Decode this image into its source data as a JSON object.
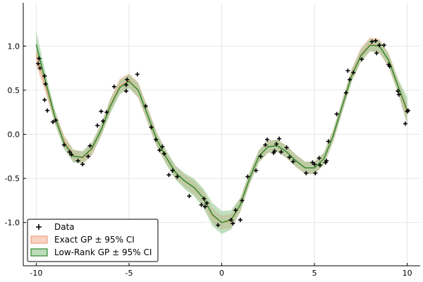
{
  "chart_data": {
    "type": "line",
    "title": "",
    "xlabel": "",
    "ylabel": "",
    "xlim": [
      -10.7,
      10.7
    ],
    "ylim": [
      -1.49,
      1.49
    ],
    "x_ticks": [
      -10,
      -5,
      0,
      5,
      10
    ],
    "x_tick_labels": [
      "-10",
      "-5",
      "0",
      "5",
      "10"
    ],
    "y_ticks": [
      -1.0,
      -0.5,
      0.0,
      0.5,
      1.0
    ],
    "y_tick_labels": [
      "-1.0",
      "-0.5",
      "0.0",
      "0.5",
      "1.0"
    ],
    "grid": true,
    "legend_position": "bottom-left",
    "series": [
      {
        "name": "Data",
        "kind": "scatter",
        "marker": "plus",
        "color": "#000000",
        "points": [
          [
            -9.9,
            0.8
          ],
          [
            -9.85,
            0.86
          ],
          [
            -9.8,
            0.75
          ],
          [
            -9.55,
            0.66
          ],
          [
            -9.5,
            0.57
          ],
          [
            -9.55,
            0.39
          ],
          [
            -9.4,
            0.27
          ],
          [
            -9.1,
            0.14
          ],
          [
            -8.95,
            0.16
          ],
          [
            -8.5,
            -0.12
          ],
          [
            -8.2,
            -0.2
          ],
          [
            -8.1,
            -0.23
          ],
          [
            -7.75,
            -0.3
          ],
          [
            -7.5,
            -0.34
          ],
          [
            -7.2,
            -0.25
          ],
          [
            -7.1,
            -0.13
          ],
          [
            -6.7,
            0.1
          ],
          [
            -6.5,
            0.26
          ],
          [
            -6.4,
            0.15
          ],
          [
            -6.2,
            0.25
          ],
          [
            -5.8,
            0.54
          ],
          [
            -5.15,
            0.56
          ],
          [
            -5.1,
            0.62
          ],
          [
            -5.15,
            0.49
          ],
          [
            -4.55,
            0.68
          ],
          [
            -4.1,
            0.32
          ],
          [
            -3.8,
            0.08
          ],
          [
            -3.55,
            -0.06
          ],
          [
            -3.35,
            -0.18
          ],
          [
            -3.2,
            -0.14
          ],
          [
            -3.1,
            -0.22
          ],
          [
            -2.85,
            -0.46
          ],
          [
            -2.65,
            -0.41
          ],
          [
            -2.4,
            -0.48
          ],
          [
            -1.75,
            -0.7
          ],
          [
            -1.1,
            -0.8
          ],
          [
            -0.95,
            -0.73
          ],
          [
            -0.9,
            -0.82
          ],
          [
            -0.8,
            -0.78
          ],
          [
            -0.2,
            -1.03
          ],
          [
            0.5,
            -0.97
          ],
          [
            0.6,
            -1.01
          ],
          [
            0.75,
            -0.86
          ],
          [
            1.0,
            -0.97
          ],
          [
            1.1,
            -0.75
          ],
          [
            1.4,
            -0.48
          ],
          [
            1.85,
            -0.41
          ],
          [
            2.1,
            -0.25
          ],
          [
            2.35,
            -0.12
          ],
          [
            2.45,
            -0.06
          ],
          [
            2.8,
            -0.21
          ],
          [
            2.85,
            -0.19
          ],
          [
            2.95,
            -0.11
          ],
          [
            3.1,
            -0.05
          ],
          [
            3.2,
            -0.2
          ],
          [
            3.5,
            -0.15
          ],
          [
            3.65,
            -0.26
          ],
          [
            3.85,
            -0.31
          ],
          [
            4.55,
            -0.44
          ],
          [
            4.9,
            -0.32
          ],
          [
            5.0,
            -0.34
          ],
          [
            5.05,
            -0.44
          ],
          [
            5.25,
            -0.27
          ],
          [
            5.3,
            -0.35
          ],
          [
            5.6,
            -0.32
          ],
          [
            5.65,
            -0.3
          ],
          [
            5.75,
            -0.08
          ],
          [
            6.2,
            0.23
          ],
          [
            6.7,
            0.47
          ],
          [
            6.8,
            0.72
          ],
          [
            6.9,
            0.62
          ],
          [
            7.1,
            0.7
          ],
          [
            7.55,
            0.85
          ],
          [
            8.1,
            1.05
          ],
          [
            8.3,
            1.06
          ],
          [
            8.35,
            0.92
          ],
          [
            8.5,
            1.01
          ],
          [
            8.75,
            1.01
          ],
          [
            9.0,
            0.79
          ],
          [
            9.05,
            0.77
          ],
          [
            9.5,
            0.49
          ],
          [
            9.55,
            0.45
          ],
          [
            9.9,
            0.12
          ],
          [
            10.0,
            0.26
          ],
          [
            10.05,
            0.27
          ]
        ]
      },
      {
        "name": "Exact GP ± 95% CI",
        "kind": "line_band",
        "color": "#f0a27d",
        "fill": "#f5b59a",
        "x": [
          -10,
          -9.5,
          -9,
          -8.5,
          -8,
          -7.5,
          -7,
          -6.5,
          -6,
          -5.5,
          -5,
          -4.5,
          -4,
          -3.5,
          -3,
          -2.5,
          -2,
          -1.5,
          -1,
          -0.5,
          0,
          0.5,
          1,
          1.5,
          2,
          2.5,
          3,
          3.5,
          4,
          4.5,
          5,
          5.5,
          6,
          6.5,
          7,
          7.5,
          8,
          8.5,
          9,
          9.5,
          10
        ],
        "mean": [
          0.9,
          0.55,
          0.2,
          -0.08,
          -0.24,
          -0.27,
          -0.17,
          0.05,
          0.33,
          0.55,
          0.61,
          0.5,
          0.22,
          -0.06,
          -0.26,
          -0.43,
          -0.53,
          -0.6,
          -0.72,
          -0.92,
          -1.0,
          -0.98,
          -0.8,
          -0.5,
          -0.25,
          -0.14,
          -0.13,
          -0.2,
          -0.3,
          -0.38,
          -0.38,
          -0.28,
          -0.02,
          0.32,
          0.67,
          0.9,
          1.02,
          1.0,
          0.84,
          0.55,
          0.24
        ],
        "lower": [
          0.78,
          0.47,
          0.13,
          -0.15,
          -0.31,
          -0.34,
          -0.24,
          -0.02,
          0.25,
          0.47,
          0.53,
          0.41,
          0.13,
          -0.14,
          -0.33,
          -0.5,
          -0.6,
          -0.68,
          -0.8,
          -1.0,
          -1.08,
          -1.06,
          -0.88,
          -0.57,
          -0.32,
          -0.21,
          -0.2,
          -0.27,
          -0.37,
          -0.45,
          -0.45,
          -0.35,
          -0.09,
          0.25,
          0.6,
          0.82,
          0.94,
          0.92,
          0.76,
          0.47,
          0.13
        ],
        "upper": [
          1.02,
          0.63,
          0.27,
          -0.01,
          -0.17,
          -0.2,
          -0.1,
          0.12,
          0.41,
          0.63,
          0.69,
          0.59,
          0.31,
          0.02,
          -0.19,
          -0.36,
          -0.46,
          -0.52,
          -0.64,
          -0.84,
          -0.92,
          -0.9,
          -0.72,
          -0.43,
          -0.18,
          -0.07,
          -0.06,
          -0.13,
          -0.23,
          -0.31,
          -0.31,
          -0.21,
          0.05,
          0.39,
          0.74,
          0.98,
          1.1,
          1.08,
          0.92,
          0.63,
          0.35
        ]
      },
      {
        "name": "Low-Rank GP ± 95% CI",
        "kind": "line_band",
        "color": "#2f8a2f",
        "fill": "#8fc48c",
        "x": [
          -10,
          -9.5,
          -9,
          -8.5,
          -8,
          -7.5,
          -7,
          -6.5,
          -6,
          -5.5,
          -5,
          -4.5,
          -4,
          -3.5,
          -3,
          -2.5,
          -2,
          -1.5,
          -1,
          -0.5,
          0,
          0.5,
          1,
          1.5,
          2,
          2.5,
          3,
          3.5,
          4,
          4.5,
          5,
          5.5,
          6,
          6.5,
          7,
          7.5,
          8,
          8.5,
          9,
          9.5,
          10
        ],
        "mean": [
          1.02,
          0.6,
          0.2,
          -0.1,
          -0.25,
          -0.26,
          -0.16,
          0.05,
          0.32,
          0.53,
          0.6,
          0.5,
          0.22,
          -0.06,
          -0.26,
          -0.43,
          -0.53,
          -0.6,
          -0.72,
          -0.91,
          -1.0,
          -0.97,
          -0.8,
          -0.5,
          -0.25,
          -0.14,
          -0.13,
          -0.2,
          -0.3,
          -0.38,
          -0.38,
          -0.28,
          -0.02,
          0.32,
          0.66,
          0.89,
          1.01,
          1.0,
          0.84,
          0.55,
          0.27
        ],
        "lower": [
          0.88,
          0.5,
          0.12,
          -0.17,
          -0.32,
          -0.33,
          -0.23,
          -0.02,
          0.24,
          0.45,
          0.52,
          0.42,
          0.14,
          -0.14,
          -0.34,
          -0.51,
          -0.62,
          -0.7,
          -0.83,
          -1.04,
          -1.13,
          -1.08,
          -0.88,
          -0.57,
          -0.32,
          -0.21,
          -0.2,
          -0.27,
          -0.37,
          -0.45,
          -0.45,
          -0.35,
          -0.09,
          0.25,
          0.59,
          0.82,
          0.94,
          0.93,
          0.77,
          0.47,
          0.11
        ],
        "upper": [
          1.17,
          0.7,
          0.28,
          -0.03,
          -0.18,
          -0.19,
          -0.09,
          0.12,
          0.4,
          0.61,
          0.68,
          0.58,
          0.3,
          0.02,
          -0.18,
          -0.35,
          -0.44,
          -0.5,
          -0.61,
          -0.78,
          -0.87,
          -0.86,
          -0.72,
          -0.43,
          -0.18,
          -0.07,
          -0.06,
          -0.13,
          -0.23,
          -0.31,
          -0.31,
          -0.21,
          0.05,
          0.39,
          0.73,
          0.96,
          1.08,
          1.07,
          0.91,
          0.63,
          0.42
        ]
      }
    ]
  }
}
